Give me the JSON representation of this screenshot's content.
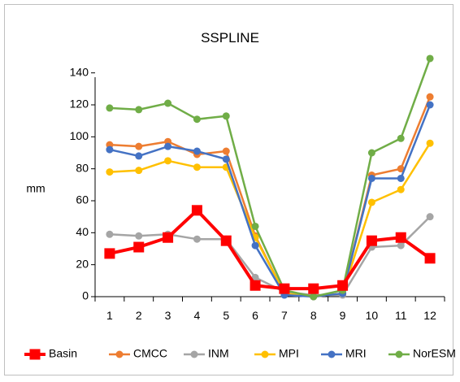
{
  "chart_data": {
    "type": "line",
    "title": "SSPLINE",
    "xlabel": "",
    "ylabel": "mm",
    "x": [
      1,
      2,
      3,
      4,
      5,
      6,
      7,
      8,
      9,
      10,
      11,
      12
    ],
    "ylim": [
      0,
      150
    ],
    "yticks": [
      0,
      20,
      40,
      60,
      80,
      100,
      120,
      140
    ],
    "grid": false,
    "legend_position": "bottom",
    "series": [
      {
        "name": "Basin",
        "color": "#ff0000",
        "marker": "square",
        "values": [
          27,
          31,
          37,
          54,
          35,
          7,
          5,
          5,
          7,
          35,
          37,
          24
        ]
      },
      {
        "name": "CMCC",
        "color": "#ed7d31",
        "marker": "circle",
        "values": [
          95,
          94,
          97,
          89,
          91,
          38,
          2,
          0,
          2,
          76,
          80,
          125
        ]
      },
      {
        "name": "INM",
        "color": "#a5a5a5",
        "marker": "circle",
        "values": [
          39,
          38,
          39,
          36,
          36,
          12,
          3,
          1,
          1,
          31,
          32,
          50
        ]
      },
      {
        "name": "MPI",
        "color": "#ffc000",
        "marker": "circle",
        "values": [
          78,
          79,
          85,
          81,
          81,
          37,
          2,
          0,
          2,
          59,
          67,
          96
        ]
      },
      {
        "name": "MRI",
        "color": "#4472c4",
        "marker": "circle",
        "values": [
          92,
          88,
          94,
          91,
          86,
          32,
          1,
          0,
          2,
          74,
          74,
          120
        ]
      },
      {
        "name": "NorESM",
        "color": "#70ad47",
        "marker": "circle",
        "values": [
          118,
          117,
          121,
          111,
          113,
          44,
          4,
          0,
          4,
          90,
          99,
          149
        ]
      }
    ]
  }
}
